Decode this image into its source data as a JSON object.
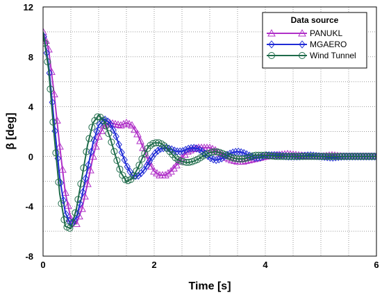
{
  "chart_data": {
    "type": "line",
    "xlabel": "Time [s]",
    "ylabel": "β [deg]",
    "xlim": [
      0,
      6
    ],
    "ylim": [
      -8,
      12
    ],
    "x_ticks": [
      "0",
      "2",
      "4",
      "6"
    ],
    "y_ticks": [
      "12",
      "8",
      "4",
      "0",
      "-4",
      "-8"
    ],
    "grid": true,
    "legend": {
      "title": "Data source",
      "position": "top-right"
    },
    "series": [
      {
        "name": "PANUKL",
        "color": "#b030c8",
        "marker": "triangle",
        "x": [
          0,
          0.1,
          0.2,
          0.3,
          0.4,
          0.5,
          0.6,
          0.7,
          0.8,
          0.9,
          1.0,
          1.1,
          1.2,
          1.3,
          1.4,
          1.5,
          1.6,
          1.7,
          1.8,
          1.9,
          2.0,
          2.1,
          2.2,
          2.3,
          2.4,
          2.5,
          2.6,
          2.7,
          2.8,
          2.9,
          3.0,
          3.1,
          3.2,
          3.3,
          3.4,
          3.5,
          3.6,
          3.7,
          3.8,
          3.9,
          4.0,
          4.2,
          4.4,
          4.6,
          4.8,
          5.0,
          5.2,
          5.4,
          5.6,
          5.8,
          6.0
        ],
        "y": [
          10.0,
          8.6,
          5.0,
          0.8,
          -2.9,
          -5.0,
          -5.4,
          -4.2,
          -2.2,
          0.0,
          1.6,
          2.5,
          2.7,
          2.6,
          2.5,
          2.7,
          2.5,
          1.8,
          0.7,
          -0.4,
          -1.2,
          -1.5,
          -1.5,
          -1.2,
          -0.7,
          -0.1,
          0.4,
          0.6,
          0.7,
          0.7,
          0.7,
          0.5,
          0.2,
          -0.1,
          -0.3,
          -0.4,
          -0.4,
          -0.3,
          -0.2,
          -0.1,
          0.0,
          0.1,
          0.2,
          0.1,
          0.0,
          0.0,
          0.1,
          0.0,
          0.0,
          0.0,
          0.0
        ]
      },
      {
        "name": "MGAERO",
        "color": "#1f2bd6",
        "marker": "diamond",
        "x": [
          0,
          0.1,
          0.2,
          0.3,
          0.4,
          0.5,
          0.6,
          0.7,
          0.8,
          0.9,
          1.0,
          1.1,
          1.2,
          1.3,
          1.4,
          1.5,
          1.6,
          1.7,
          1.8,
          1.9,
          2.0,
          2.1,
          2.2,
          2.3,
          2.4,
          2.5,
          2.6,
          2.7,
          2.8,
          2.9,
          3.0,
          3.1,
          3.2,
          3.3,
          3.4,
          3.5,
          3.6,
          3.7,
          3.8,
          3.9,
          4.0,
          4.2,
          4.4,
          4.6,
          4.8,
          5.0,
          5.2,
          5.4,
          5.6,
          5.8,
          6.0
        ],
        "y": [
          10.0,
          7.4,
          2.7,
          -1.7,
          -4.5,
          -5.5,
          -4.9,
          -3.2,
          -1.0,
          1.1,
          2.5,
          3.0,
          2.7,
          1.8,
          0.5,
          -0.7,
          -1.5,
          -1.6,
          -1.2,
          -0.5,
          0.2,
          0.6,
          0.7,
          0.6,
          0.4,
          0.4,
          0.6,
          0.7,
          0.6,
          0.3,
          -0.1,
          -0.3,
          -0.2,
          0.1,
          0.3,
          0.4,
          0.3,
          0.1,
          -0.1,
          -0.1,
          0.1,
          0.1,
          0.0,
          0.0,
          0.1,
          0.0,
          -0.1,
          0.0,
          0.0,
          0.0,
          0.0
        ]
      },
      {
        "name": "Wind Tunnel",
        "color": "#1e6b4a",
        "marker": "circle",
        "x": [
          0,
          0.1,
          0.2,
          0.3,
          0.4,
          0.5,
          0.6,
          0.7,
          0.8,
          0.9,
          1.0,
          1.1,
          1.2,
          1.3,
          1.4,
          1.5,
          1.6,
          1.7,
          1.8,
          1.9,
          2.0,
          2.1,
          2.2,
          2.3,
          2.4,
          2.5,
          2.6,
          2.7,
          2.8,
          2.9,
          3.0,
          3.1,
          3.2,
          3.3,
          3.4,
          3.5,
          3.6,
          3.7,
          3.8,
          3.9,
          4.0,
          4.2,
          4.4,
          4.6,
          4.8,
          5.0,
          5.2,
          5.4,
          5.6,
          5.8,
          6.0
        ],
        "y": [
          10.0,
          7.0,
          1.7,
          -3.0,
          -5.6,
          -5.8,
          -4.2,
          -1.7,
          0.9,
          2.7,
          3.3,
          2.8,
          1.6,
          0.1,
          -1.3,
          -2.0,
          -1.8,
          -1.0,
          0.0,
          0.8,
          1.1,
          1.1,
          0.8,
          0.3,
          -0.2,
          -0.4,
          -0.5,
          -0.4,
          -0.2,
          0.1,
          0.3,
          0.4,
          0.3,
          0.1,
          -0.1,
          -0.2,
          -0.2,
          -0.1,
          0.1,
          0.1,
          0.1,
          0.0,
          0.0,
          0.0,
          0.0,
          0.0,
          0.0,
          0.0,
          0.0,
          0.0,
          0.0
        ]
      }
    ]
  }
}
